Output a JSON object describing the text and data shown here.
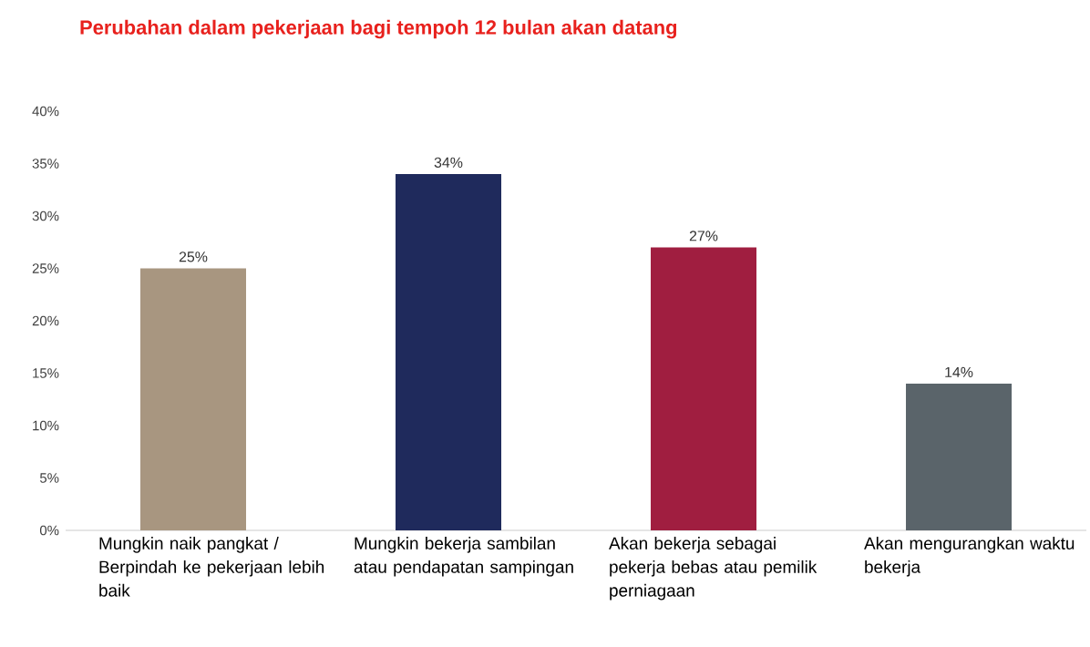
{
  "chart_data": {
    "type": "bar",
    "title": "Perubahan dalam pekerjaan bagi tempoh 12 bulan akan datang",
    "categories": [
      "Mungkin naik pangkat / Berpindah ke pekerjaan lebih baik",
      "Mungkin bekerja sambilan atau pendapatan sampingan",
      "Akan bekerja sebagai pekerja bebas atau pemilik perniagaan",
      "Akan mengurangkan waktu bekerja"
    ],
    "values": [
      25,
      34,
      27,
      14
    ],
    "colors": [
      "#a89680",
      "#1f2a5c",
      "#a01e40",
      "#5a646a"
    ],
    "value_labels": [
      "25%",
      "34%",
      "27%",
      "14%"
    ],
    "ylim": [
      0,
      40
    ],
    "yticks": [
      {
        "value": 0,
        "label": "0%"
      },
      {
        "value": 5,
        "label": "5%"
      },
      {
        "value": 10,
        "label": "10%"
      },
      {
        "value": 15,
        "label": "15%"
      },
      {
        "value": 20,
        "label": "20%"
      },
      {
        "value": 25,
        "label": "25%"
      },
      {
        "value": 30,
        "label": "30%"
      },
      {
        "value": 35,
        "label": "35%"
      },
      {
        "value": 40,
        "label": "40%"
      }
    ],
    "grid": false
  }
}
